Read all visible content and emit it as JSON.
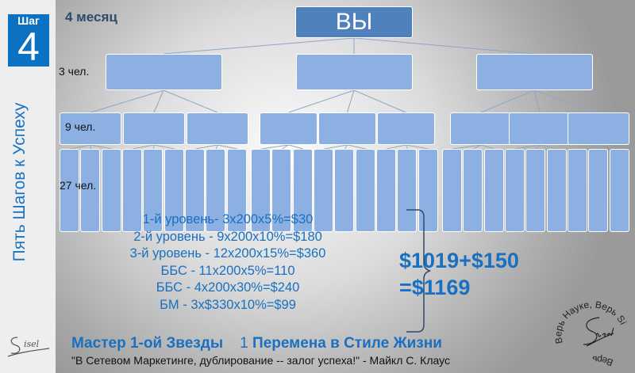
{
  "sidebar": {
    "step_label": "Шаг",
    "step_number": "4",
    "vertical_title": "Пять Шагов к Успеху",
    "logo_text": "Sisel"
  },
  "header": {
    "month": "4 месяц"
  },
  "tree": {
    "top_label": "ВЫ",
    "level2_label": "3 чел.",
    "level3_label": "9 чел.",
    "level4_label": "27 чел.",
    "level2_count": 3,
    "level3_count": 9,
    "level4_count": 27
  },
  "calculation": {
    "lines": [
      "1-й уровень- 3x200x5%=$30",
      "2-й уровень - 9x200x10%=$180",
      "3-й уровень - 12x200x15%=$360",
      "ББС - 11x200x5%=110",
      "ББС - 4x200x30%=$240",
      "БМ - 3x$330x10%=$99"
    ],
    "total_line1": "$1019+$150",
    "total_line2": "=$1169"
  },
  "footer": {
    "rank": "Мастер 1-ой Звезды",
    "change_number": "1",
    "change_text": "Перемена в Стиле Жизни",
    "quote": "\"В Сетевом Маркетинге, дублирование -- залог успеха!\" - Майкл С. Клаус"
  },
  "seal": {
    "text": "Верь Науке, Верь Sisel",
    "logo_text": "Sisel"
  },
  "colors": {
    "accent": "#1a70c0",
    "box": "#8db0e2",
    "top_box": "#4f81bd",
    "step_box": "#0b72c3"
  }
}
